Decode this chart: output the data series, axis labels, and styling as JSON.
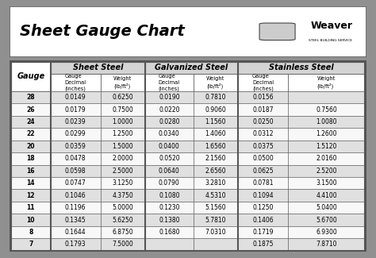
{
  "title": "Sheet Gauge Chart",
  "bg_outer": "#909090",
  "bg_white": "#ffffff",
  "bg_table": "#ffffff",
  "row_alt": "#e0e0e0",
  "row_normal": "#f8f8f8",
  "header_section_bg": "#d4d4d4",
  "border_dark": "#555555",
  "border_light": "#999999",
  "gauges": [
    28,
    26,
    24,
    22,
    20,
    18,
    16,
    14,
    12,
    11,
    10,
    8,
    7
  ],
  "sheet_steel_decimal": [
    "0.0149",
    "0.0179",
    "0.0239",
    "0.0299",
    "0.0359",
    "0.0478",
    "0.0598",
    "0.0747",
    "0.1046",
    "0.1196",
    "0.1345",
    "0.1644",
    "0.1793"
  ],
  "sheet_steel_weight": [
    "0.6250",
    "0.7500",
    "1.0000",
    "1.2500",
    "1.5000",
    "2.0000",
    "2.5000",
    "3.1250",
    "4.3750",
    "5.0000",
    "5.6250",
    "6.8750",
    "7.5000"
  ],
  "galv_decimal": [
    "0.0190",
    "0.0220",
    "0.0280",
    "0.0340",
    "0.0400",
    "0.0520",
    "0.0640",
    "0.0790",
    "0.1080",
    "0.1230",
    "0.1380",
    "0.1680",
    ""
  ],
  "galv_weight": [
    "0.7810",
    "0.9060",
    "1.1560",
    "1.4060",
    "1.6560",
    "2.1560",
    "2.6560",
    "3.2810",
    "4.5310",
    "5.1560",
    "5.7810",
    "7.0310",
    ""
  ],
  "stainless_decimal": [
    "0.0156",
    "0.0187",
    "0.0250",
    "0.0312",
    "0.0375",
    "0.0500",
    "0.0625",
    "0.0781",
    "0.1094",
    "0.1250",
    "0.1406",
    "0.1719",
    "0.1875"
  ],
  "stainless_weight": [
    "",
    "0.7560",
    "1.0080",
    "1.2600",
    "1.5120",
    "2.0160",
    "2.5200",
    "3.1500",
    "4.4100",
    "5.0400",
    "5.6700",
    "6.9300",
    "7.8710"
  ],
  "col_sections": [
    "Sheet Steel",
    "Galvanized Steel",
    "Stainless Steel"
  ]
}
